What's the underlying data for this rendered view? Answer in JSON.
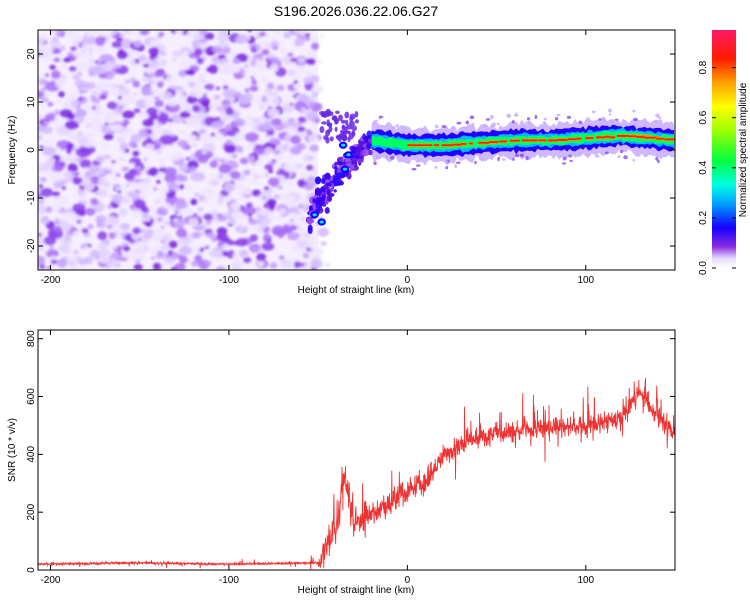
{
  "title": "S196.2026.036.22.06.G27",
  "chart_data": [
    {
      "type": "heatmap",
      "panel": "spectrogram",
      "xlabel": "Height of straight line (km)",
      "ylabel": "Frequency (Hz)",
      "xlim": [
        -207,
        150
      ],
      "ylim": [
        -25,
        25
      ],
      "xticks": [
        -200,
        -100,
        0,
        100
      ],
      "yticks": [
        -20,
        -10,
        0,
        10,
        20
      ],
      "colorbar": {
        "label": "Normalized spectral amplitude",
        "range": [
          0,
          0.95
        ],
        "ticks": [
          "0.0",
          "0.2",
          "0.4",
          "0.6",
          "0.8"
        ]
      },
      "features": {
        "noise_region_x": [
          -207,
          -50
        ],
        "transition_x": [
          -55,
          -20
        ],
        "transition_freq_start": -15,
        "signal_track": {
          "x": [
            -20,
            0,
            20,
            40,
            60,
            80,
            100,
            120,
            150
          ],
          "frequency": [
            2.0,
            1.0,
            1.0,
            1.5,
            2.0,
            2.0,
            2.5,
            3.0,
            2.0
          ]
        }
      }
    },
    {
      "type": "line",
      "panel": "snr",
      "xlabel": "Height of straight line (km)",
      "ylabel": "SNR (10 * v/v)",
      "xlim": [
        -207,
        150
      ],
      "ylim": [
        0,
        830
      ],
      "xticks": [
        -200,
        -100,
        0,
        100
      ],
      "yticks": [
        0,
        200,
        400,
        600,
        800
      ],
      "series": [
        {
          "color": "#ee3333",
          "x": [
            -207,
            -150,
            -100,
            -50,
            -40,
            -35,
            -30,
            -20,
            -10,
            0,
            10,
            20,
            30,
            40,
            60,
            80,
            100,
            120,
            130,
            140,
            150
          ],
          "y": [
            20,
            25,
            20,
            25,
            150,
            320,
            170,
            200,
            230,
            280,
            300,
            400,
            430,
            460,
            480,
            490,
            500,
            520,
            620,
            530,
            480
          ]
        }
      ]
    }
  ]
}
